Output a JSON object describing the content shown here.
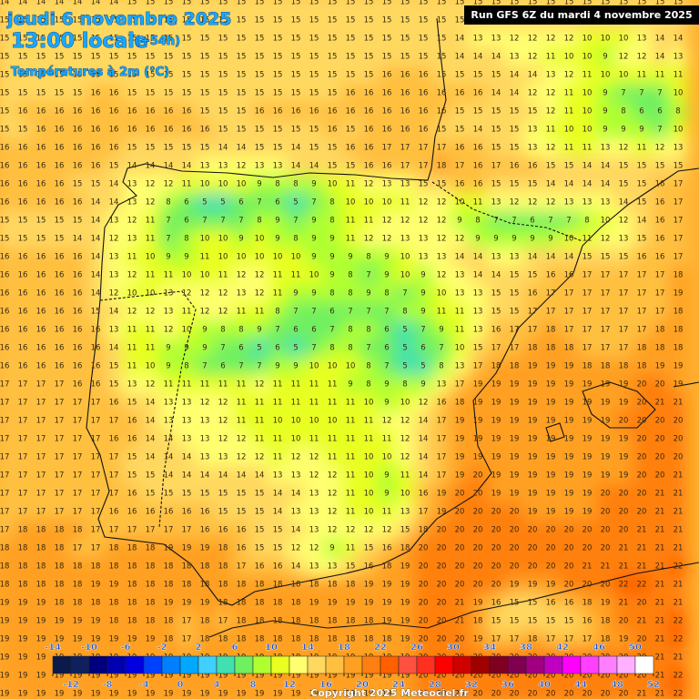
{
  "header": {
    "date": "jeudi 6 novembre 2025",
    "time": "13:00 locale",
    "lead": "(+54h)",
    "variable": "Températures à 2m (°C)"
  },
  "run_label": "Run GFS 6Z du mardi 4 novembre 2025",
  "copyright": "Copyright 2025 Meteociel.fr",
  "grid": {
    "rows": [
      [
        14,
        14,
        14,
        14,
        14,
        14,
        14,
        15,
        15,
        15,
        15,
        15,
        15,
        15,
        15,
        15,
        15,
        15,
        15,
        15,
        15,
        15,
        15,
        15,
        15,
        15,
        15,
        15,
        15,
        15,
        15,
        15,
        15,
        15,
        15,
        15,
        15,
        15
      ],
      [
        15,
        15,
        15,
        15,
        15,
        15,
        15,
        15,
        15,
        15,
        15,
        15,
        15,
        15,
        15,
        15,
        15,
        15,
        15,
        15,
        15,
        15,
        15,
        15,
        15,
        15,
        15,
        15,
        15,
        15,
        15,
        15,
        15,
        15,
        15,
        15,
        15,
        15
      ],
      [
        15,
        15,
        15,
        15,
        15,
        15,
        15,
        15,
        15,
        15,
        15,
        15,
        15,
        15,
        15,
        15,
        15,
        15,
        15,
        15,
        15,
        15,
        15,
        15,
        15,
        14,
        13,
        13,
        12,
        12,
        12,
        12,
        10,
        10,
        10,
        13,
        14,
        14
      ],
      [
        15,
        15,
        15,
        15,
        15,
        15,
        15,
        15,
        15,
        15,
        15,
        15,
        15,
        15,
        15,
        15,
        15,
        15,
        15,
        15,
        15,
        15,
        15,
        15,
        15,
        14,
        14,
        14,
        13,
        12,
        11,
        10,
        10,
        9,
        12,
        12,
        14,
        13
      ],
      [
        15,
        15,
        15,
        15,
        15,
        15,
        15,
        15,
        15,
        15,
        15,
        15,
        15,
        15,
        15,
        15,
        15,
        15,
        15,
        15,
        15,
        16,
        16,
        16,
        15,
        15,
        15,
        15,
        14,
        14,
        13,
        12,
        11,
        10,
        10,
        11,
        11,
        11
      ],
      [
        15,
        15,
        15,
        15,
        15,
        16,
        16,
        15,
        15,
        15,
        15,
        15,
        15,
        15,
        15,
        15,
        15,
        15,
        15,
        16,
        16,
        16,
        16,
        16,
        16,
        16,
        16,
        14,
        14,
        12,
        12,
        11,
        10,
        9,
        7,
        7,
        7,
        10
      ],
      [
        15,
        16,
        16,
        16,
        16,
        16,
        16,
        16,
        16,
        16,
        16,
        15,
        15,
        15,
        16,
        16,
        16,
        16,
        16,
        16,
        16,
        16,
        16,
        16,
        16,
        15,
        15,
        15,
        15,
        15,
        12,
        11,
        10,
        9,
        8,
        6,
        6,
        8
      ],
      [
        15,
        15,
        16,
        16,
        16,
        16,
        16,
        16,
        16,
        16,
        16,
        16,
        15,
        15,
        15,
        15,
        15,
        15,
        16,
        15,
        16,
        16,
        16,
        16,
        15,
        15,
        14,
        15,
        15,
        13,
        11,
        10,
        10,
        9,
        9,
        9,
        7,
        10
      ],
      [
        16,
        16,
        16,
        16,
        16,
        16,
        16,
        15,
        15,
        15,
        15,
        15,
        14,
        14,
        15,
        15,
        14,
        15,
        15,
        16,
        16,
        17,
        17,
        17,
        17,
        16,
        16,
        15,
        15,
        13,
        12,
        11,
        11,
        13,
        12,
        11,
        12,
        13
      ],
      [
        16,
        16,
        16,
        16,
        16,
        16,
        15,
        14,
        14,
        14,
        14,
        13,
        13,
        12,
        13,
        13,
        14,
        14,
        15,
        15,
        16,
        16,
        17,
        17,
        18,
        17,
        16,
        17,
        16,
        16,
        15,
        15,
        14,
        14,
        15,
        15,
        15,
        15
      ],
      [
        16,
        16,
        16,
        16,
        15,
        15,
        14,
        13,
        12,
        12,
        11,
        10,
        10,
        10,
        9,
        8,
        8,
        9,
        10,
        11,
        12,
        13,
        13,
        15,
        15,
        16,
        16,
        15,
        15,
        15,
        14,
        14,
        14,
        14,
        15,
        15,
        16,
        17
      ],
      [
        16,
        16,
        16,
        16,
        16,
        14,
        14,
        13,
        12,
        8,
        6,
        5,
        5,
        6,
        7,
        6,
        5,
        7,
        8,
        10,
        10,
        10,
        11,
        12,
        12,
        10,
        11,
        13,
        12,
        12,
        12,
        13,
        13,
        13,
        14,
        15,
        16,
        17
      ],
      [
        15,
        15,
        15,
        15,
        15,
        14,
        13,
        12,
        11,
        7,
        6,
        7,
        7,
        7,
        8,
        9,
        7,
        9,
        8,
        11,
        11,
        12,
        12,
        12,
        12,
        9,
        8,
        7,
        7,
        6,
        7,
        7,
        8,
        10,
        12,
        14,
        16,
        17
      ],
      [
        15,
        15,
        15,
        15,
        14,
        14,
        12,
        13,
        11,
        7,
        8,
        10,
        10,
        9,
        10,
        9,
        8,
        9,
        9,
        11,
        12,
        12,
        13,
        13,
        12,
        12,
        9,
        9,
        9,
        9,
        9,
        10,
        11,
        12,
        13,
        15,
        16,
        17
      ],
      [
        16,
        16,
        16,
        16,
        16,
        14,
        13,
        11,
        10,
        9,
        9,
        11,
        10,
        10,
        10,
        10,
        10,
        9,
        9,
        9,
        8,
        9,
        10,
        13,
        13,
        14,
        14,
        13,
        13,
        14,
        14,
        14,
        15,
        15,
        15,
        16,
        16,
        17
      ],
      [
        16,
        16,
        16,
        16,
        16,
        14,
        13,
        12,
        11,
        11,
        10,
        10,
        11,
        12,
        12,
        11,
        11,
        10,
        9,
        8,
        7,
        9,
        10,
        9,
        12,
        13,
        14,
        14,
        15,
        15,
        16,
        16,
        17,
        17,
        17,
        17,
        17,
        18
      ],
      [
        16,
        16,
        16,
        16,
        16,
        14,
        12,
        10,
        10,
        13,
        12,
        12,
        12,
        13,
        12,
        11,
        9,
        9,
        8,
        8,
        9,
        8,
        7,
        9,
        10,
        13,
        13,
        15,
        15,
        16,
        17,
        17,
        17,
        17,
        17,
        17,
        17,
        19
      ],
      [
        16,
        16,
        16,
        16,
        16,
        15,
        14,
        12,
        12,
        13,
        11,
        12,
        12,
        11,
        11,
        8,
        7,
        7,
        6,
        7,
        7,
        7,
        8,
        9,
        11,
        11,
        13,
        15,
        15,
        17,
        17,
        17,
        17,
        17,
        17,
        17,
        17,
        18
      ],
      [
        16,
        16,
        16,
        16,
        16,
        16,
        13,
        11,
        11,
        12,
        10,
        9,
        8,
        8,
        9,
        7,
        6,
        6,
        7,
        8,
        8,
        6,
        5,
        7,
        9,
        11,
        13,
        16,
        17,
        17,
        18,
        17,
        17,
        17,
        17,
        17,
        18,
        18
      ],
      [
        16,
        16,
        16,
        16,
        16,
        16,
        14,
        11,
        11,
        9,
        9,
        9,
        7,
        6,
        5,
        6,
        5,
        7,
        8,
        8,
        7,
        6,
        5,
        6,
        7,
        10,
        15,
        17,
        17,
        18,
        18,
        18,
        17,
        17,
        17,
        18,
        18,
        18
      ],
      [
        16,
        16,
        16,
        16,
        16,
        16,
        15,
        11,
        10,
        9,
        8,
        7,
        6,
        7,
        7,
        9,
        9,
        10,
        10,
        10,
        8,
        7,
        5,
        5,
        8,
        13,
        17,
        18,
        18,
        19,
        19,
        19,
        18,
        18,
        18,
        18,
        19,
        19
      ],
      [
        17,
        17,
        17,
        17,
        16,
        16,
        15,
        13,
        12,
        11,
        11,
        11,
        11,
        11,
        12,
        11,
        11,
        11,
        11,
        9,
        8,
        9,
        8,
        9,
        13,
        17,
        19,
        19,
        19,
        19,
        19,
        19,
        19,
        19,
        19,
        20,
        20,
        19
      ],
      [
        17,
        17,
        17,
        17,
        17,
        17,
        16,
        15,
        14,
        13,
        13,
        12,
        12,
        11,
        11,
        11,
        11,
        11,
        11,
        11,
        10,
        9,
        10,
        12,
        16,
        18,
        19,
        19,
        19,
        19,
        19,
        19,
        19,
        19,
        19,
        20,
        21,
        21
      ],
      [
        17,
        17,
        17,
        17,
        17,
        17,
        17,
        16,
        14,
        13,
        13,
        13,
        12,
        11,
        11,
        10,
        10,
        10,
        10,
        11,
        11,
        12,
        12,
        14,
        17,
        19,
        19,
        19,
        19,
        19,
        19,
        19,
        19,
        19,
        20,
        20,
        20,
        20
      ],
      [
        17,
        17,
        17,
        17,
        17,
        17,
        16,
        16,
        14,
        14,
        13,
        13,
        12,
        12,
        11,
        11,
        10,
        11,
        11,
        11,
        11,
        11,
        12,
        14,
        17,
        19,
        19,
        19,
        19,
        19,
        19,
        19,
        19,
        19,
        19,
        20,
        20,
        20
      ],
      [
        17,
        17,
        17,
        17,
        17,
        17,
        17,
        15,
        14,
        14,
        14,
        13,
        13,
        12,
        12,
        11,
        12,
        12,
        11,
        11,
        10,
        10,
        12,
        14,
        17,
        19,
        19,
        19,
        19,
        19,
        19,
        19,
        19,
        19,
        19,
        20,
        20,
        20
      ],
      [
        17,
        17,
        17,
        17,
        17,
        17,
        17,
        15,
        15,
        14,
        14,
        14,
        14,
        14,
        14,
        13,
        13,
        12,
        12,
        11,
        10,
        9,
        11,
        14,
        17,
        19,
        20,
        19,
        19,
        19,
        19,
        19,
        19,
        19,
        19,
        20,
        20,
        21
      ],
      [
        17,
        17,
        17,
        17,
        17,
        17,
        17,
        16,
        15,
        15,
        15,
        15,
        15,
        15,
        15,
        14,
        14,
        13,
        12,
        11,
        10,
        9,
        10,
        16,
        19,
        20,
        20,
        19,
        19,
        19,
        19,
        19,
        19,
        20,
        20,
        20,
        21,
        21
      ],
      [
        17,
        17,
        17,
        17,
        17,
        17,
        16,
        16,
        16,
        16,
        16,
        16,
        15,
        15,
        15,
        14,
        13,
        13,
        12,
        11,
        10,
        11,
        13,
        17,
        19,
        20,
        20,
        20,
        20,
        19,
        19,
        19,
        19,
        20,
        20,
        20,
        21,
        21
      ],
      [
        17,
        18,
        18,
        18,
        18,
        17,
        17,
        17,
        17,
        17,
        17,
        16,
        16,
        16,
        15,
        15,
        14,
        13,
        12,
        12,
        12,
        12,
        15,
        18,
        20,
        20,
        20,
        20,
        20,
        20,
        20,
        20,
        20,
        20,
        20,
        21,
        21,
        21
      ],
      [
        18,
        18,
        18,
        18,
        17,
        17,
        18,
        18,
        18,
        19,
        19,
        19,
        18,
        16,
        15,
        15,
        12,
        12,
        9,
        11,
        15,
        16,
        18,
        20,
        20,
        20,
        20,
        20,
        20,
        20,
        20,
        20,
        20,
        20,
        21,
        21,
        21,
        21
      ],
      [
        18,
        18,
        18,
        18,
        18,
        18,
        18,
        18,
        18,
        18,
        18,
        18,
        18,
        17,
        16,
        16,
        14,
        13,
        13,
        15,
        16,
        18,
        19,
        20,
        20,
        20,
        20,
        20,
        20,
        20,
        20,
        20,
        21,
        21,
        21,
        21,
        21,
        22
      ],
      [
        18,
        18,
        18,
        18,
        18,
        19,
        19,
        18,
        18,
        18,
        18,
        18,
        18,
        18,
        18,
        18,
        18,
        18,
        18,
        18,
        19,
        19,
        19,
        20,
        20,
        20,
        20,
        20,
        19,
        19,
        19,
        20,
        20,
        20,
        22,
        22,
        21,
        21
      ],
      [
        19,
        19,
        19,
        18,
        18,
        18,
        18,
        18,
        18,
        19,
        19,
        19,
        18,
        18,
        18,
        18,
        18,
        19,
        19,
        19,
        19,
        19,
        19,
        20,
        20,
        21,
        19,
        16,
        15,
        15,
        16,
        16,
        18,
        19,
        21,
        20,
        21,
        21
      ],
      [
        19,
        19,
        19,
        19,
        19,
        19,
        18,
        18,
        18,
        18,
        17,
        18,
        17,
        18,
        18,
        18,
        18,
        18,
        18,
        18,
        18,
        19,
        19,
        20,
        20,
        21,
        18,
        15,
        15,
        15,
        15,
        15,
        16,
        18,
        20,
        21,
        21,
        22
      ],
      [
        19,
        19,
        19,
        19,
        19,
        19,
        19,
        19,
        19,
        18,
        17,
        18,
        18,
        18,
        18,
        18,
        18,
        18,
        18,
        18,
        18,
        18,
        19,
        20,
        20,
        20,
        19,
        17,
        17,
        18,
        17,
        17,
        17,
        18,
        19,
        20,
        21,
        22
      ],
      [
        19,
        19,
        19,
        19,
        19,
        19,
        19,
        19,
        19,
        19,
        19,
        19,
        19,
        19,
        19,
        19,
        19,
        19,
        19,
        19,
        19,
        19,
        19,
        20,
        20,
        20,
        20,
        20,
        20,
        20,
        20,
        20,
        20,
        20,
        20,
        20,
        21,
        21
      ],
      [
        19,
        19,
        19,
        19,
        19,
        19,
        19,
        19,
        19,
        19,
        19,
        19,
        19,
        19,
        19,
        19,
        19,
        19,
        19,
        19,
        19,
        19,
        19,
        20,
        20,
        20,
        20,
        20,
        20,
        20,
        20,
        20,
        20,
        20,
        20,
        20,
        21,
        22
      ],
      [
        19,
        19,
        19,
        19,
        19,
        19,
        19,
        19,
        19,
        19,
        19,
        19,
        19,
        19,
        19,
        19,
        19,
        19,
        19,
        19,
        19,
        19,
        19,
        20,
        20,
        20,
        20,
        20,
        20,
        20,
        20,
        20,
        20,
        20,
        20,
        21,
        21,
        22
      ]
    ]
  },
  "legend": {
    "ticks": [
      -14,
      -12,
      -10,
      -8,
      -6,
      -4,
      -2,
      0,
      2,
      4,
      6,
      8,
      10,
      12,
      14,
      16,
      18,
      20,
      22,
      24,
      26,
      28,
      30,
      32,
      34,
      36,
      38,
      40,
      42,
      44,
      46,
      48,
      50,
      52
    ],
    "colors": [
      "#0a1a4a",
      "#10205f",
      "#00007f",
      "#0000b0",
      "#0000e0",
      "#0040ff",
      "#0080ff",
      "#00a8ff",
      "#40d0ff",
      "#40e0b0",
      "#70f060",
      "#b0ff30",
      "#e8ff20",
      "#ffff70",
      "#ffd860",
      "#ffc040",
      "#ffa020",
      "#ff8010",
      "#ff6000",
      "#ff5040",
      "#ff3020",
      "#ff0000",
      "#d00000",
      "#a00000",
      "#800020",
      "#800050",
      "#a00080",
      "#c000c0",
      "#ff00ff",
      "#ff40ff",
      "#ff80ff",
      "#ffb0ff",
      "#ffffff"
    ]
  }
}
